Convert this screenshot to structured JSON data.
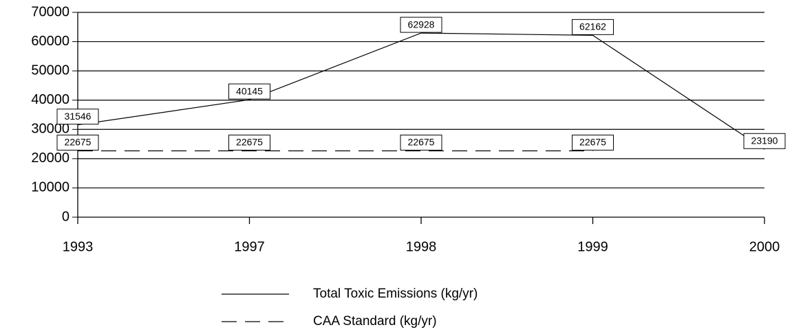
{
  "chart_data": {
    "type": "line",
    "categories": [
      "1993",
      "1997",
      "1998",
      "1999",
      "2000"
    ],
    "series": [
      {
        "name": "Total Toxic Emissions (kg/yr)",
        "color": "#000000",
        "dash": false,
        "values": [
          31546,
          40145,
          62928,
          62162,
          23190
        ]
      },
      {
        "name": "CAA Standard (kg/yr)",
        "color": "#000000",
        "dash": true,
        "values": [
          22675,
          22675,
          22675,
          22675,
          null
        ]
      }
    ],
    "ylim": [
      0,
      70000
    ],
    "yticks": [
      0,
      10000,
      20000,
      30000,
      40000,
      50000,
      60000,
      70000
    ],
    "grid": true
  }
}
